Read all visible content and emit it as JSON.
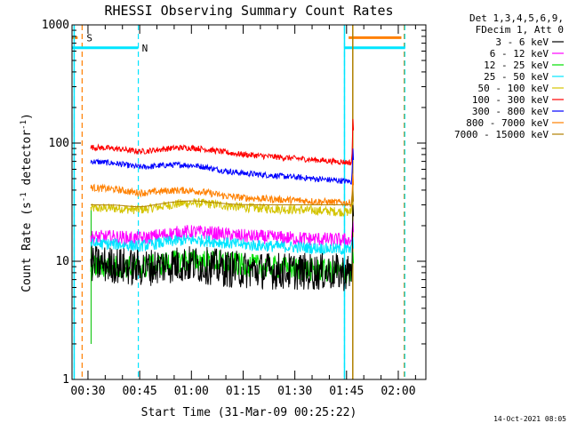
{
  "chart_data": {
    "type": "line",
    "title": "RHESSI Observing Summary Count Rates",
    "xlabel": "Start Time (31-Mar-09 00:25:22)",
    "ylabel_parts": [
      "Count Rate (s",
      "-1",
      " detector",
      "-1",
      ")"
    ],
    "y_scale": "log",
    "ylim": [
      1,
      1000
    ],
    "xlim_minutes": [
      25.37,
      128.0
    ],
    "y_ticks": [
      {
        "value": 1,
        "label": "1"
      },
      {
        "value": 10,
        "label": "10"
      },
      {
        "value": 100,
        "label": "100"
      },
      {
        "value": 1000,
        "label": "1000"
      }
    ],
    "x_ticks": [
      {
        "value": 30,
        "label": "00:30"
      },
      {
        "value": 45,
        "label": "00:45"
      },
      {
        "value": 60,
        "label": "01:00"
      },
      {
        "value": 75,
        "label": "01:15"
      },
      {
        "value": 90,
        "label": "01:30"
      },
      {
        "value": 105,
        "label": "01:45"
      },
      {
        "value": 120,
        "label": "02:00"
      }
    ],
    "legend_header": [
      "Det 1,3,4,5,6,9,",
      "FDecim 1, Att 0"
    ],
    "legend_position": "right, outside plot",
    "data_window_minutes": [
      30.8,
      107.0
    ],
    "series": [
      {
        "name": "3 - 6 keV",
        "color": "#000000",
        "start": 9.5,
        "mid": 8.5,
        "end": 8.0,
        "noise": 0.16,
        "flare_peak": 30
      },
      {
        "name": "6 - 12 keV",
        "color": "#ff00ff",
        "start": 16.0,
        "mid": 16.5,
        "end": 15.0,
        "noise": 0.06,
        "flare_peak": 22
      },
      {
        "name": "12 - 25 keV",
        "color": "#00e000",
        "start": 9.0,
        "mid": 9.5,
        "end": 8.0,
        "noise": 0.1,
        "flare_peak": 12
      },
      {
        "name": "25 - 50 keV",
        "color": "#00e5ff",
        "start": 14.0,
        "mid": 14.0,
        "end": 12.5,
        "noise": 0.05,
        "flare_peak": 16
      },
      {
        "name": "50 - 100 keV",
        "color": "#d4c400",
        "start": 28.0,
        "mid": 29.0,
        "end": 26.0,
        "noise": 0.04,
        "flare_peak": 30
      },
      {
        "name": "100 - 300 keV",
        "color": "#ff0000",
        "start": 92.0,
        "mid": 82.0,
        "end": 68.0,
        "noise": 0.025,
        "flare_peak": 160
      },
      {
        "name": "300 - 800 keV",
        "color": "#0000ff",
        "start": 70.0,
        "mid": 57.0,
        "end": 47.0,
        "noise": 0.025,
        "flare_peak": 90
      },
      {
        "name": "800 - 7000 keV",
        "color": "#ff8000",
        "start": 42.0,
        "mid": 35.0,
        "end": 31.0,
        "noise": 0.03,
        "flare_peak": 55
      },
      {
        "name": "7000 - 15000 keV",
        "color": "#b08000",
        "start": 30.0,
        "mid": 30.0,
        "end": 30.0,
        "noise": 0.0,
        "flare_peak": 40
      }
    ],
    "markers": [
      {
        "label": "S",
        "color": "#ff8000",
        "line_minutes": [
          28.3,
          121.7
        ],
        "bar_segments": [
          [
            25.4,
            27.0
          ],
          [
            105.6,
            120.9
          ]
        ],
        "bar_value": 780
      },
      {
        "label": "N",
        "color": "#00e5ff",
        "line_minutes": [
          26.0,
          44.6,
          104.4,
          121.9
        ],
        "bar_segments": [
          [
            25.4,
            44.6
          ],
          [
            104.4,
            122.0
          ]
        ],
        "bar_value": 640
      }
    ],
    "timestamp": "14-Oct-2021 08:05"
  }
}
